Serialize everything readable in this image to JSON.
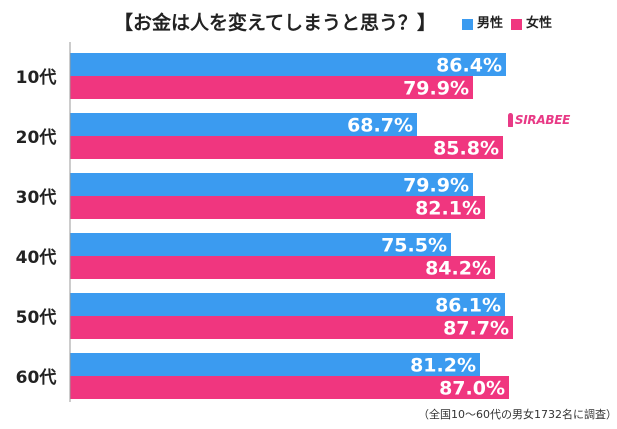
{
  "chart_data": {
    "type": "bar",
    "orientation": "horizontal",
    "title": "【お金は人を変えてしまうと思う？】",
    "categories": [
      "10代",
      "20代",
      "30代",
      "40代",
      "50代",
      "60代"
    ],
    "series": [
      {
        "name": "男性",
        "color": "#3b9bf0",
        "values": [
          86.4,
          68.7,
          79.9,
          75.5,
          86.1,
          81.2
        ]
      },
      {
        "name": "女性",
        "color": "#f0367f",
        "values": [
          79.9,
          85.8,
          82.1,
          84.2,
          87.7,
          87.0
        ]
      }
    ],
    "value_suffix": "%",
    "xlim": [
      0,
      100
    ],
    "grid": false,
    "legend_position": "top-right",
    "footnote": "（全国10〜60代の男女1732名に調査）",
    "logo_text": "SIRABEE"
  }
}
